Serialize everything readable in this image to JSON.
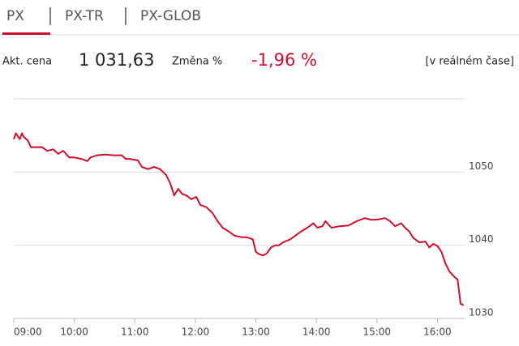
{
  "tabs": [
    "PX",
    "PX-TR",
    "PX-GLOB"
  ],
  "info": {
    "price_label": "Akt. cena",
    "price": "1 031,63",
    "change_label": "Změna %",
    "change": "-1,96 %",
    "mode": "[v reálném čase]"
  },
  "chart_data": {
    "type": "line",
    "color": "#c8102e",
    "grid": true,
    "xlim": [
      540,
      987
    ],
    "ylim": [
      1030,
      1060
    ],
    "xticks": [
      {
        "value": 540,
        "label": "09:00"
      },
      {
        "value": 600,
        "label": "10:00"
      },
      {
        "value": 660,
        "label": "11:00"
      },
      {
        "value": 720,
        "label": "12:00"
      },
      {
        "value": 780,
        "label": "13:00"
      },
      {
        "value": 840,
        "label": "14:00"
      },
      {
        "value": 900,
        "label": "15:00"
      },
      {
        "value": 960,
        "label": "16:00"
      }
    ],
    "yticks": [
      1030,
      1040,
      1050
    ],
    "x": [
      540,
      542,
      546,
      548,
      550,
      554,
      557,
      562,
      568,
      573,
      579,
      584,
      589,
      595,
      600,
      607,
      613,
      616,
      623,
      631,
      639,
      647,
      651,
      655,
      663,
      667,
      673,
      679,
      685,
      691,
      695,
      699,
      703,
      707,
      711,
      716,
      721,
      725,
      731,
      737,
      742,
      747,
      753,
      759,
      766,
      771,
      777,
      780,
      783,
      787,
      791,
      795,
      799,
      803,
      807,
      814,
      819,
      825,
      831,
      837,
      841,
      846,
      849,
      855,
      863,
      872,
      880,
      888,
      894,
      900,
      908,
      913,
      918,
      924,
      928,
      932,
      936,
      942,
      948,
      952,
      956,
      960,
      964,
      968,
      972,
      976,
      980,
      983,
      986
    ],
    "values": [
      1054.5,
      1055.3,
      1054.5,
      1055.3,
      1054.8,
      1054.3,
      1053.4,
      1053.4,
      1053.4,
      1052.9,
      1053.1,
      1052.5,
      1052.9,
      1052.0,
      1052.0,
      1051.8,
      1051.5,
      1052.0,
      1052.3,
      1052.4,
      1052.3,
      1052.3,
      1051.8,
      1051.8,
      1051.6,
      1050.7,
      1050.4,
      1050.7,
      1050.4,
      1049.6,
      1048.5,
      1046.8,
      1047.7,
      1047.0,
      1046.8,
      1046.3,
      1046.6,
      1045.5,
      1045.2,
      1044.4,
      1043.3,
      1042.4,
      1041.9,
      1041.3,
      1041.1,
      1041.1,
      1040.8,
      1039.1,
      1038.8,
      1038.6,
      1038.9,
      1039.7,
      1040.0,
      1040.0,
      1040.4,
      1040.8,
      1041.3,
      1041.9,
      1042.4,
      1043.0,
      1042.4,
      1042.6,
      1043.3,
      1042.4,
      1042.6,
      1042.7,
      1043.3,
      1043.7,
      1043.5,
      1043.5,
      1043.7,
      1043.3,
      1042.6,
      1043.0,
      1042.4,
      1041.9,
      1041.0,
      1040.4,
      1040.5,
      1039.7,
      1040.2,
      1039.9,
      1039.1,
      1037.5,
      1036.4,
      1035.8,
      1035.3,
      1032.0,
      1031.8
    ]
  }
}
